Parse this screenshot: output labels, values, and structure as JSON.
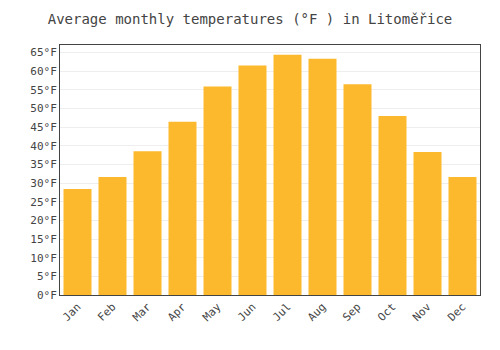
{
  "chart_data": {
    "type": "bar",
    "title": "Average monthly temperatures (°F ) in Litoměřice",
    "categories": [
      "Jan",
      "Feb",
      "Mar",
      "Apr",
      "May",
      "Jun",
      "Jul",
      "Aug",
      "Sep",
      "Oct",
      "Nov",
      "Dec"
    ],
    "values": [
      28.4,
      31.6,
      38.5,
      46.4,
      55.9,
      61.5,
      64.4,
      63.3,
      56.5,
      48.0,
      38.3,
      31.6
    ],
    "color": "#FDB92E",
    "ylim": [
      0,
      67
    ],
    "yticks": [
      {
        "value": 0,
        "label": "0°F"
      },
      {
        "value": 5,
        "label": "5°F"
      },
      {
        "value": 10,
        "label": "10°F"
      },
      {
        "value": 15,
        "label": "15°F"
      },
      {
        "value": 20,
        "label": "20°F"
      },
      {
        "value": 25,
        "label": "25°F"
      },
      {
        "value": 30,
        "label": "30°F"
      },
      {
        "value": 35,
        "label": "35°F"
      },
      {
        "value": 40,
        "label": "40°F"
      },
      {
        "value": 45,
        "label": "45°F"
      },
      {
        "value": 50,
        "label": "50°F"
      },
      {
        "value": 55,
        "label": "55°F"
      },
      {
        "value": 60,
        "label": "60°F"
      },
      {
        "value": 65,
        "label": "65°F"
      }
    ],
    "grid": true
  }
}
